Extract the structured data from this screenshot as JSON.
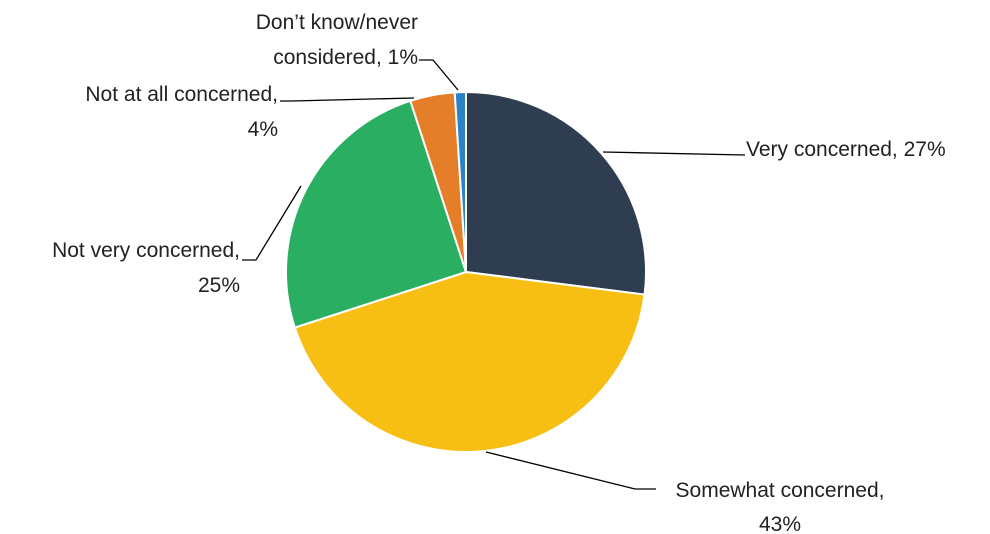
{
  "chart_data": {
    "type": "pie",
    "title": "",
    "slices": [
      {
        "label": "Very concerned",
        "value": 27,
        "value_label": "27%",
        "color": "#2E3E50"
      },
      {
        "label": "Somewhat concerned",
        "value": 43,
        "value_label": "43%",
        "color": "#F7BE13"
      },
      {
        "label": "Not very concerned",
        "value": 25,
        "value_label": "25%",
        "color": "#29AE62"
      },
      {
        "label": "Not at all concerned",
        "value": 4,
        "value_label": "4%",
        "color": "#E47E28"
      },
      {
        "label": "Don’t know/never considered",
        "value": 1,
        "value_label": "1%",
        "color": "#2D82C5"
      }
    ],
    "legend": "none",
    "data_labels": "outside with leader lines"
  }
}
